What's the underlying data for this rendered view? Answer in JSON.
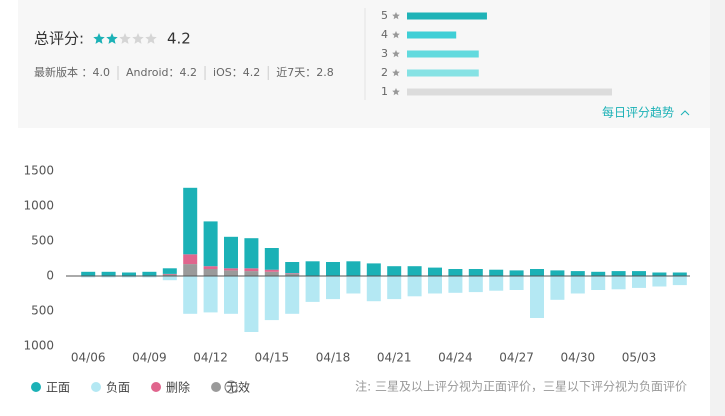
{
  "header": {
    "title": "总评分:",
    "score": "4.2",
    "filled_stars": 2,
    "total_stars": 5,
    "versions": [
      "最新版本 ：4.0",
      "Android：4.2",
      "iOS：4.2",
      "近7天：2.8"
    ],
    "trend_link": "每日评分趋势"
  },
  "rating_bars": {
    "xlim": [
      0,
      100
    ],
    "bars": [
      {
        "label": "5",
        "value": 39,
        "color": "#1fb3b7"
      },
      {
        "label": "4",
        "value": 24,
        "color": "#3fcfd6"
      },
      {
        "label": "3",
        "value": 35,
        "color": "#62dade"
      },
      {
        "label": "2",
        "value": 35,
        "color": "#86e2e4"
      },
      {
        "label": "1",
        "value": 100,
        "color": "#dcdcdc"
      }
    ]
  },
  "chart_data": {
    "type": "bar",
    "stacked": true,
    "categories": [
      "04/06",
      null,
      null,
      "04/09",
      null,
      null,
      "04/12",
      null,
      null,
      "04/15",
      null,
      null,
      "04/18",
      null,
      null,
      "04/21",
      null,
      null,
      "04/24",
      null,
      null,
      "04/27",
      null,
      null,
      "04/30",
      null,
      null,
      "05/03",
      null,
      null
    ],
    "series": [
      {
        "name": "无效",
        "color": "#9a9a9a",
        "values": [
          0,
          0,
          0,
          0,
          20,
          170,
          100,
          80,
          70,
          60,
          30,
          0,
          0,
          0,
          0,
          0,
          0,
          0,
          0,
          0,
          0,
          0,
          0,
          0,
          0,
          0,
          0,
          0,
          0,
          0
        ]
      },
      {
        "name": "删除",
        "color": "#e0658d",
        "values": [
          0,
          0,
          0,
          0,
          10,
          140,
          40,
          30,
          40,
          30,
          10,
          0,
          0,
          0,
          0,
          0,
          0,
          0,
          0,
          0,
          0,
          0,
          0,
          0,
          0,
          0,
          0,
          0,
          0,
          0
        ]
      },
      {
        "name": "正面",
        "color": "#1bb1b6",
        "values": [
          60,
          60,
          50,
          60,
          80,
          950,
          640,
          450,
          430,
          310,
          160,
          210,
          200,
          210,
          180,
          140,
          140,
          120,
          100,
          100,
          90,
          80,
          100,
          80,
          70,
          60,
          70,
          70,
          50,
          50
        ]
      },
      {
        "name": "负面",
        "color": "#b4e8f3",
        "values": [
          -20,
          -20,
          -20,
          -20,
          -60,
          -540,
          -520,
          -540,
          -800,
          -630,
          -540,
          -370,
          -330,
          -250,
          -360,
          -330,
          -290,
          -250,
          -240,
          -230,
          -210,
          -200,
          -600,
          -340,
          -250,
          -200,
          -190,
          -170,
          -150,
          -130
        ]
      }
    ],
    "legend_order": [
      2,
      3,
      1,
      0
    ],
    "ylim": [
      -1000,
      1500
    ],
    "yticks": [
      {
        "value": -1000,
        "label": "1000"
      },
      {
        "value": -500,
        "label": "500"
      },
      0,
      500,
      1000,
      1500
    ],
    "note": "注: 三星及以上评分视为正面评价，三星以下评分视为负面评价"
  }
}
